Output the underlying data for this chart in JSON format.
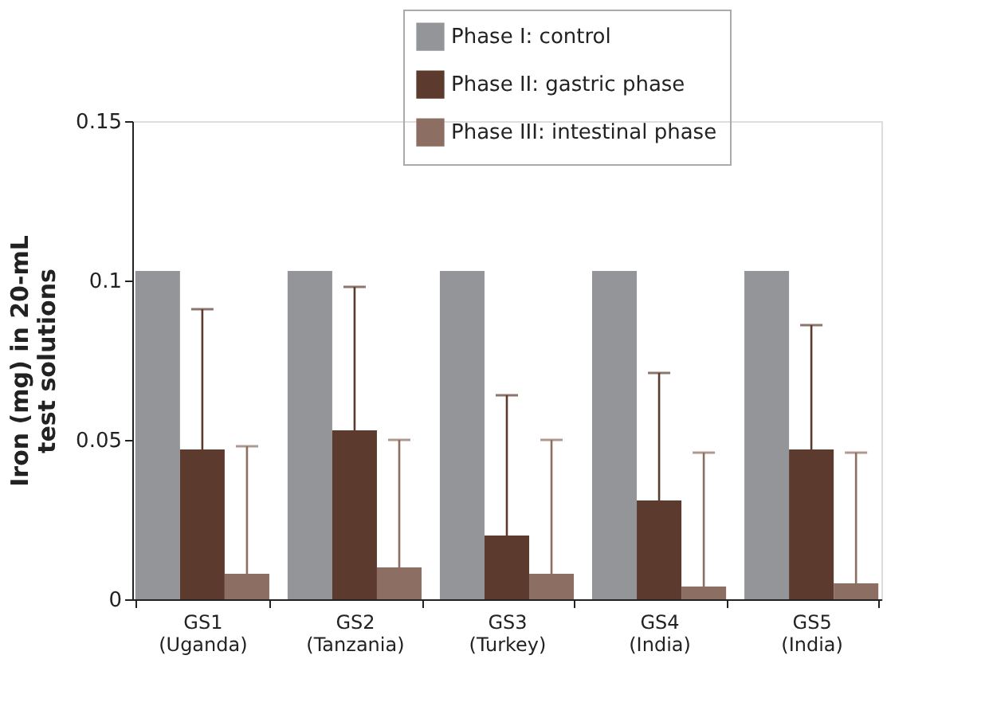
{
  "chart_data": {
    "type": "bar",
    "categories": [
      "GS1 (Uganda)",
      "GS2 (Tanzania)",
      "GS3 (Turkey)",
      "GS4 (India)",
      "GS5 (India)"
    ],
    "ylabel": "Iron (mg) in 20-mL\ntest solutions",
    "series": [
      {
        "name": "Phase I: control",
        "color": "#939598",
        "values": [
          0.103,
          0.103,
          0.103,
          0.103,
          0.103
        ]
      },
      {
        "name": "Phase II: gastric phase",
        "color": "#5c3a2e",
        "values": [
          0.047,
          0.053,
          0.02,
          0.031,
          0.047
        ],
        "errors": [
          [
            0.047,
            0.091
          ],
          [
            0.053,
            0.098
          ],
          [
            0.02,
            0.064
          ],
          [
            0.031,
            0.071
          ],
          [
            0.047,
            0.086
          ]
        ]
      },
      {
        "name": "Phase III: intestinal phase",
        "color": "#8c6e62",
        "values": [
          0.008,
          0.01,
          0.008,
          0.004,
          0.005
        ],
        "errors": [
          [
            0.008,
            0.048
          ],
          [
            0.01,
            0.05
          ],
          [
            0.008,
            0.05
          ],
          [
            0.004,
            0.046
          ],
          [
            0.005,
            0.046
          ]
        ]
      }
    ],
    "ylim": [
      0,
      0.15
    ],
    "yticks": [
      0,
      0.05,
      0.1,
      0.15
    ],
    "grid": false,
    "legend": "top right"
  }
}
